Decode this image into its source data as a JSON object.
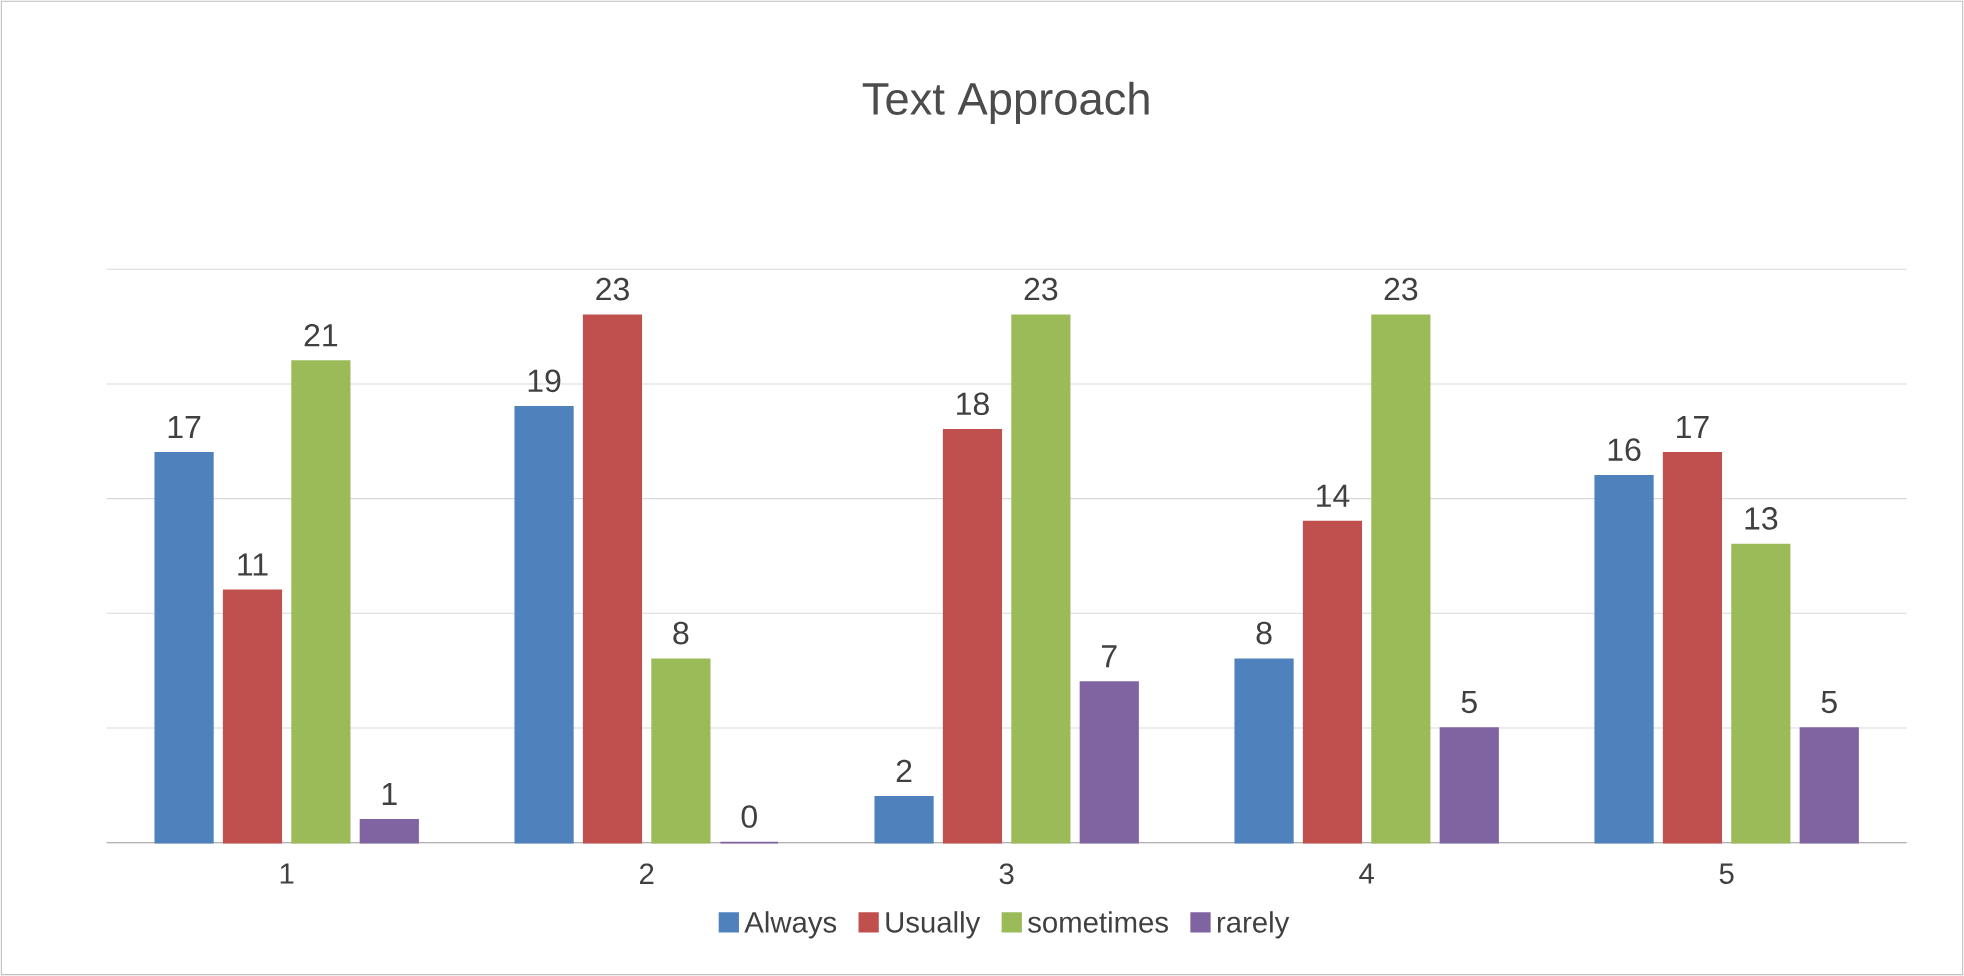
{
  "chart_data": {
    "type": "bar",
    "title": "Text Approach",
    "categories": [
      "1",
      "2",
      "3",
      "4",
      "5"
    ],
    "series": [
      {
        "name": "Always",
        "color": "#4f81bd",
        "values": [
          17,
          19,
          2,
          8,
          16
        ]
      },
      {
        "name": "Usually",
        "color": "#c0504d",
        "values": [
          11,
          23,
          18,
          14,
          17
        ]
      },
      {
        "name": "sometimes",
        "color": "#9bbb59",
        "values": [
          21,
          8,
          23,
          23,
          13
        ]
      },
      {
        "name": "rarely",
        "color": "#8064a2",
        "values": [
          1,
          0,
          7,
          5,
          5
        ]
      }
    ],
    "ylim": [
      0,
      25
    ],
    "yticks": [
      {
        "value": 0,
        "label": null
      },
      {
        "value": 5,
        "label": null
      },
      {
        "value": 10,
        "label": null
      },
      {
        "value": 15,
        "label": null
      },
      {
        "value": 20,
        "label": null
      },
      {
        "value": 25,
        "label": null
      }
    ],
    "tick_labels": "x",
    "grid": "y",
    "legend": "bottom",
    "data_labels": true
  }
}
